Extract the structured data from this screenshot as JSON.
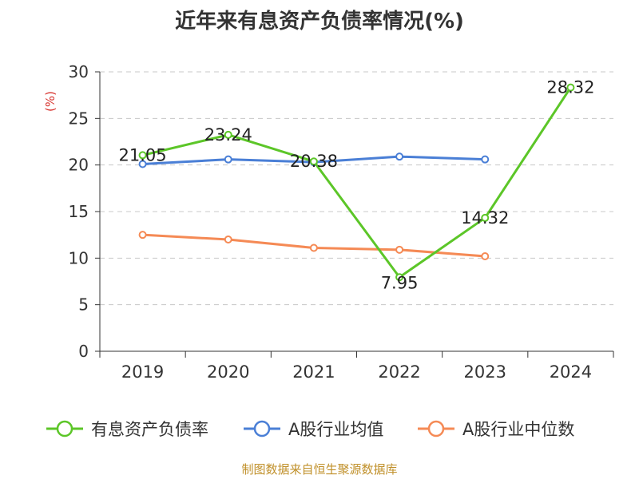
{
  "chart_data": {
    "type": "line",
    "title": "近年来有息资产负债率情况(%)",
    "ylabel": "(%)",
    "categories": [
      "2019",
      "2020",
      "2021",
      "2022",
      "2023",
      "2024"
    ],
    "y_ticks": [
      0,
      5,
      10,
      15,
      20,
      25,
      30
    ],
    "ylim": [
      0,
      30
    ],
    "grid": "horizontal-dashed",
    "legend_position": "bottom",
    "series": [
      {
        "name": "有息资产负债率",
        "color": "#5cc628",
        "values": [
          21.05,
          23.24,
          20.38,
          7.95,
          14.32,
          28.32
        ],
        "data_labels": [
          "21.05",
          "23.24",
          "20.38",
          "7.95",
          "14.32",
          "28.32"
        ]
      },
      {
        "name": "A股行业均值",
        "color": "#4a7fd6",
        "values": [
          20.1,
          20.6,
          20.3,
          20.9,
          20.6,
          null
        ]
      },
      {
        "name": "A股行业中位数",
        "color": "#f58a55",
        "values": [
          12.5,
          12.0,
          11.1,
          10.9,
          10.2,
          null
        ]
      }
    ]
  },
  "footer": {
    "source": "制图数据来自恒生聚源数据库"
  }
}
